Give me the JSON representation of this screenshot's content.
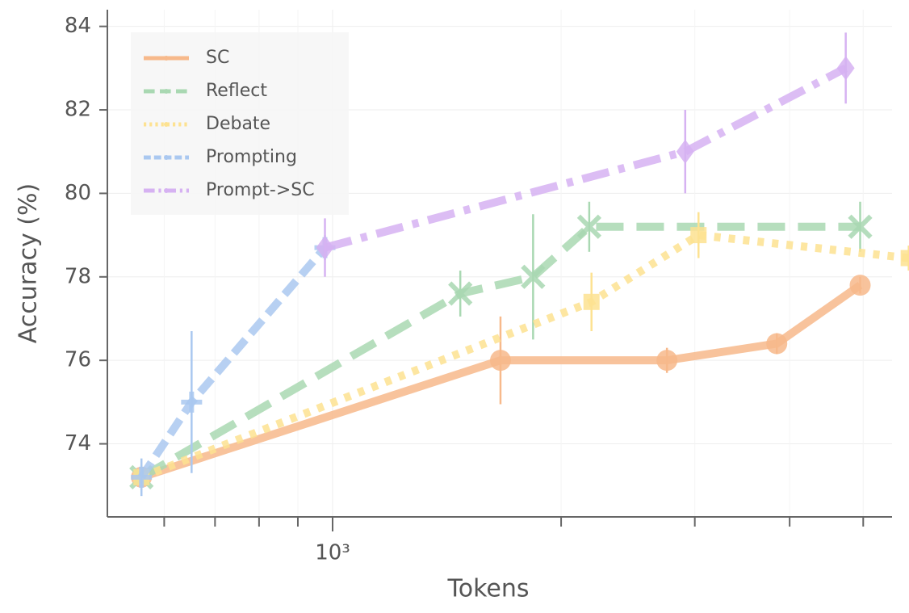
{
  "chart_data": {
    "type": "line",
    "xlabel": "Tokens",
    "ylabel": "Accuracy (%)",
    "xscale": "log",
    "xlim": [
      505,
      5457
    ],
    "ylim": [
      72.25,
      84.4
    ],
    "xticks": [
      {
        "value": 1000,
        "label": "10³"
      }
    ],
    "xminorticks": [
      600,
      700,
      800,
      900,
      2000,
      3000,
      4000,
      5000
    ],
    "yticks": [
      74,
      76,
      78,
      80,
      82,
      84
    ],
    "grid": true,
    "legend": "upper left",
    "series": [
      {
        "name": "SC",
        "color": "#f7b98b",
        "marker": "circle",
        "dash": "solid",
        "x": [
          560,
          1664,
          2757,
          3847,
          4954
        ],
        "values": [
          73.2,
          76.0,
          76.0,
          76.4,
          77.8
        ],
        "errors": [
          0.3,
          1.05,
          0.3,
          0.25,
          0.2
        ]
      },
      {
        "name": "Reflect",
        "color": "#a9d8b2",
        "marker": "x",
        "dash": "dashed",
        "x": [
          560,
          1473,
          1837,
          2178,
          4954
        ],
        "values": [
          73.2,
          77.6,
          78.0,
          79.2,
          79.2
        ],
        "errors": [
          0.3,
          0.55,
          1.5,
          0.6,
          0.6
        ]
      },
      {
        "name": "Debate",
        "color": "#fde291",
        "marker": "square",
        "dash": "dotted",
        "x": [
          560,
          2193,
          3034,
          5740
        ],
        "values": [
          73.2,
          77.4,
          79.0,
          78.45
        ],
        "errors": [
          0.3,
          0.7,
          0.55,
          0.3
        ]
      },
      {
        "name": "Prompting",
        "color": "#aac8f0",
        "marker": "plus",
        "dash": "dashed-short",
        "x": [
          560,
          652,
          977
        ],
        "values": [
          73.2,
          75.0,
          78.7
        ],
        "errors": [
          0.45,
          1.7,
          0.3
        ]
      },
      {
        "name": "Prompt->SC",
        "color": "#d6b2f2",
        "marker": "diamond",
        "dash": "dashdot",
        "x": [
          977,
          2914,
          4742
        ],
        "values": [
          78.7,
          81.0,
          83.0
        ],
        "errors": [
          0.7,
          1.0,
          0.85
        ]
      }
    ]
  }
}
